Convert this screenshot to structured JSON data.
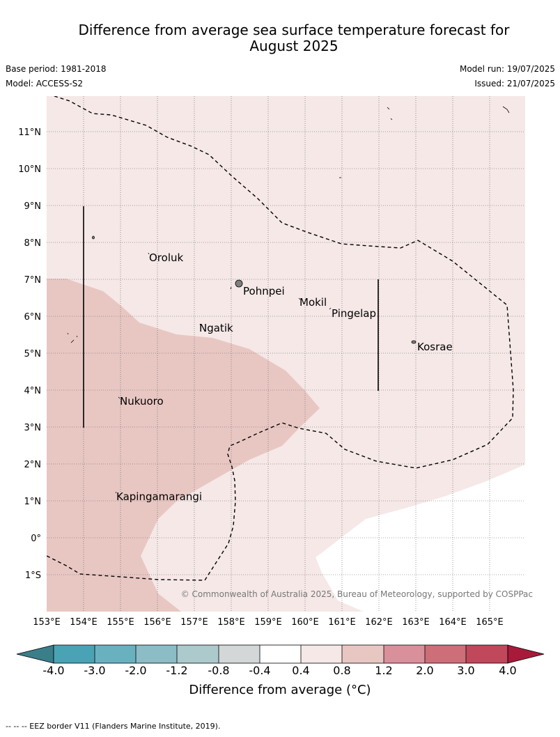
{
  "header": {
    "title_line1": "Difference from average sea surface temperature forecast for",
    "title_line2": "August 2025",
    "base_period": "Base period: 1981-2018",
    "model": "Model: ACCESS-S2",
    "model_run": "Model run: 19/07/2025",
    "issued": "Issued: 21/07/2025"
  },
  "map": {
    "lat_labels": [
      "11°N",
      "10°N",
      "9°N",
      "8°N",
      "7°N",
      "6°N",
      "5°N",
      "4°N",
      "3°N",
      "2°N",
      "1°N",
      "0°",
      "1°S"
    ],
    "lon_labels": [
      "153°E",
      "154°E",
      "155°E",
      "156°E",
      "157°E",
      "158°E",
      "159°E",
      "160°E",
      "161°E",
      "162°E",
      "163°E",
      "164°E",
      "165°E"
    ],
    "places": [
      "Oroluk",
      "Pohnpei",
      "Mokil",
      "Pingelap",
      "Ngatik",
      "Kosrae",
      "Nukuoro",
      "Kapingamarangi"
    ],
    "copyright": "© Commonwealth of Australia 2025, Bureau of Meteorology, supported by COSPPac",
    "colors": {
      "warm_0_4_0_8": "#f5e8e7",
      "warm_0_8_1_2": "#e8c7c3",
      "neutral": "#ffffff"
    }
  },
  "colorbar": {
    "ticks": [
      "-4.0",
      "-3.0",
      "-2.0",
      "-1.2",
      "-0.8",
      "-0.4",
      "0.4",
      "0.8",
      "1.2",
      "2.0",
      "3.0",
      "4.0"
    ],
    "colors": [
      "#4aa3b4",
      "#6ab1c0",
      "#8cbcc6",
      "#acc9cc",
      "#d3d7d7",
      "#ffffff",
      "#f5e8e7",
      "#e8c7c3",
      "#d9909a",
      "#cd6e79",
      "#c0485a"
    ],
    "low_extend_color": "#3a7e8a",
    "high_extend_color": "#a81a3a",
    "label": "Difference from average (°C)"
  },
  "footer": "--  --  -- EEZ border V11 (Flanders Marine Institute, 2019)."
}
